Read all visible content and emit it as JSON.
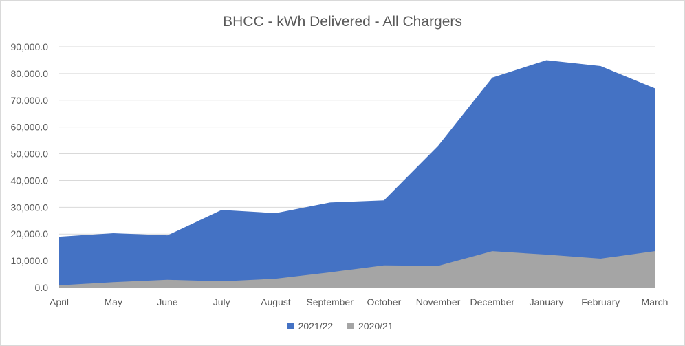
{
  "chart_data": {
    "type": "area",
    "stacked": false,
    "title": "BHCC - kWh Delivered - All Chargers",
    "xlabel": "",
    "ylabel": "",
    "categories": [
      "April",
      "May",
      "June",
      "July",
      "August",
      "September",
      "October",
      "November",
      "December",
      "January",
      "February",
      "March"
    ],
    "ylim": [
      0,
      90000
    ],
    "yticks": [
      0,
      10000,
      20000,
      30000,
      40000,
      50000,
      60000,
      70000,
      80000,
      90000
    ],
    "ytick_labels": [
      "0.0",
      "10,000.0",
      "20,000.0",
      "30,000.0",
      "40,000.0",
      "50,000.0",
      "60,000.0",
      "70,000.0",
      "80,000.0",
      "90,000.0"
    ],
    "grid": true,
    "legend_position": "bottom",
    "series": [
      {
        "name": "2021/22",
        "color": "#4472c4",
        "values": [
          19000,
          20300,
          19500,
          29000,
          27800,
          31800,
          32600,
          53000,
          78500,
          85000,
          82800,
          74500
        ]
      },
      {
        "name": "2020/21",
        "color": "#a5a5a5",
        "values": [
          800,
          2000,
          2900,
          2300,
          3300,
          5700,
          8300,
          8100,
          13600,
          12300,
          10800,
          13600
        ]
      }
    ]
  }
}
